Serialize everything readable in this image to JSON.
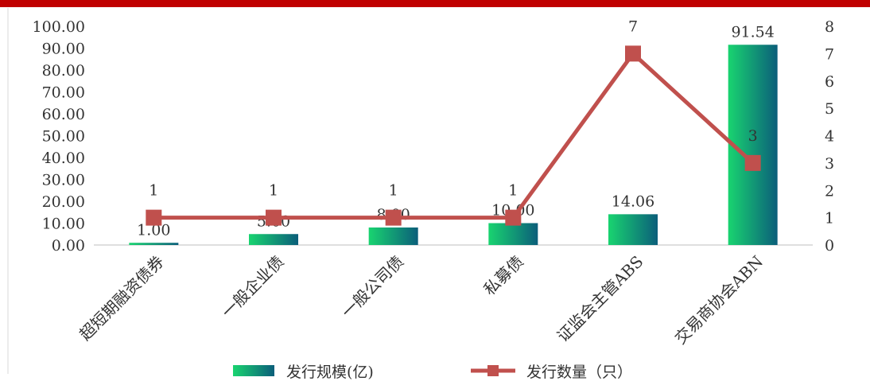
{
  "colors": {
    "top_bar": "#c00000",
    "bar_gradient_start": "#19d470",
    "bar_gradient_end": "#0b5e7a",
    "line": "#c0504d",
    "text": "#333333",
    "axis": "#bfbfbf"
  },
  "chart_data": {
    "type": "bar",
    "categories": [
      "超短期融资债券",
      "一般企业债",
      "一般公司债",
      "私募债",
      "证监会主管ABS",
      "交易商协会ABN"
    ],
    "series": [
      {
        "name": "发行规模(亿)",
        "type": "bar",
        "axis": "left",
        "values": [
          1.0,
          5.0,
          8.0,
          10.0,
          14.06,
          91.54
        ],
        "labels": [
          "1.00",
          "5.00",
          "8.00",
          "10.00",
          "14.06",
          "91.54"
        ]
      },
      {
        "name": "发行数量（只）",
        "type": "line",
        "axis": "right",
        "values": [
          1,
          1,
          1,
          1,
          7,
          3
        ],
        "labels": [
          "1",
          "1",
          "1",
          "1",
          "7",
          "3"
        ]
      }
    ],
    "y_left": {
      "min": 0,
      "max": 100,
      "ticks": [
        "0.00",
        "10.00",
        "20.00",
        "30.00",
        "40.00",
        "50.00",
        "60.00",
        "70.00",
        "80.00",
        "90.00",
        "100.00"
      ]
    },
    "y_right": {
      "min": 0,
      "max": 8,
      "ticks": [
        "0",
        "1",
        "2",
        "3",
        "4",
        "5",
        "6",
        "7",
        "8"
      ]
    },
    "grid": false,
    "legend_position": "bottom"
  }
}
